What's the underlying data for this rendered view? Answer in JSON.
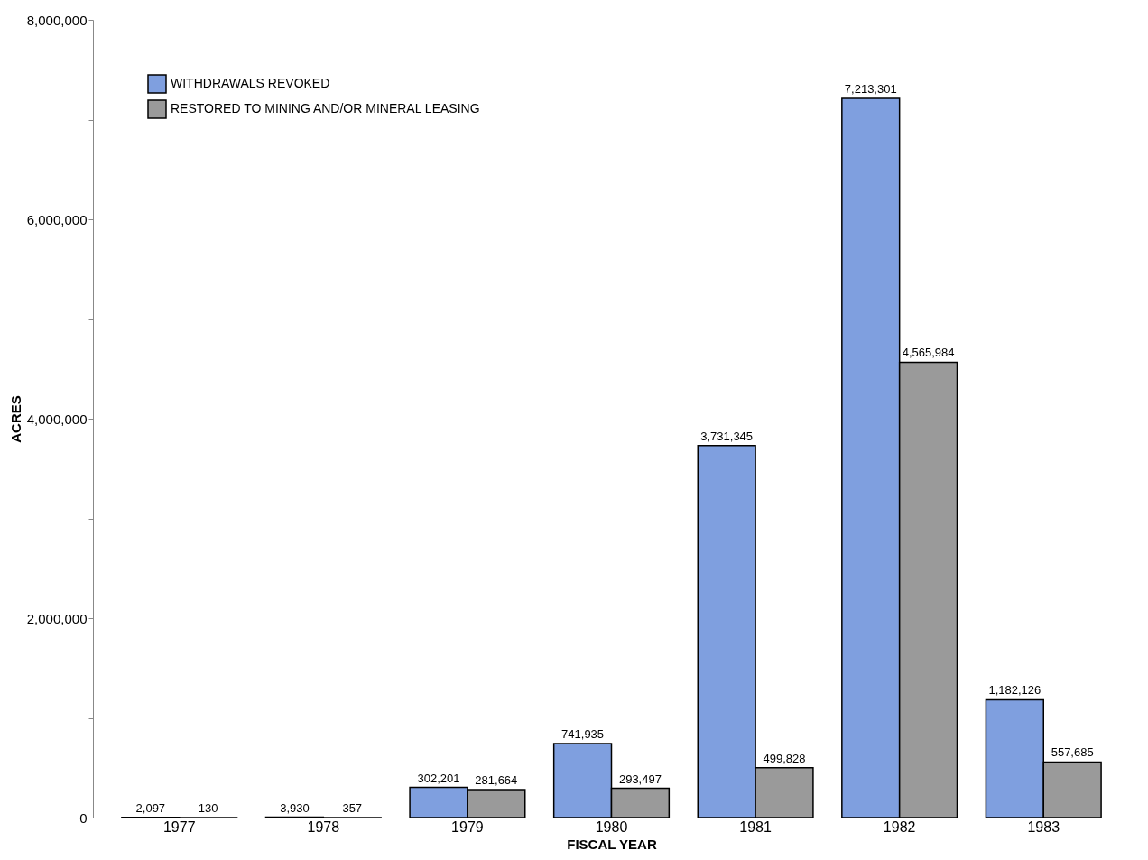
{
  "chart_data": {
    "type": "bar",
    "xlabel": "FISCAL YEAR",
    "ylabel": "ACRES",
    "categories": [
      "1977",
      "1978",
      "1979",
      "1980",
      "1981",
      "1982",
      "1983"
    ],
    "series": [
      {
        "name": "WITHDRAWALS REVOKED",
        "color": "#7f9fdf",
        "values": [
          2097,
          3930,
          302201,
          741935,
          3731345,
          7213301,
          1182126
        ],
        "value_labels": [
          "2,097",
          "3,930",
          "302,201",
          "741,935",
          "3,731,345",
          "7,213,301",
          "1,182,126"
        ]
      },
      {
        "name": "RESTORED TO MINING AND/OR MINERAL LEASING",
        "color": "#9a9a9a",
        "values": [
          130,
          357,
          281664,
          293497,
          499828,
          4565984,
          557685
        ],
        "value_labels": [
          "130",
          "357",
          "281,664",
          "293,497",
          "499,828",
          "4,565,984",
          "557,685"
        ]
      }
    ],
    "ylim": [
      0,
      8000000
    ],
    "yticks": [
      0,
      {
        "value": 1000000,
        "label": null
      },
      {
        "value": 2000000,
        "label": "2,000,000"
      },
      {
        "value": 3000000,
        "label": null
      },
      {
        "value": 4000000,
        "label": "4,000,000"
      },
      {
        "value": 5000000,
        "label": null
      },
      {
        "value": 6000000,
        "label": "6,000,000"
      },
      {
        "value": 7000000,
        "label": null
      },
      {
        "value": 8000000,
        "label": "8,000,000"
      }
    ],
    "grid": false,
    "legend": "top left"
  }
}
